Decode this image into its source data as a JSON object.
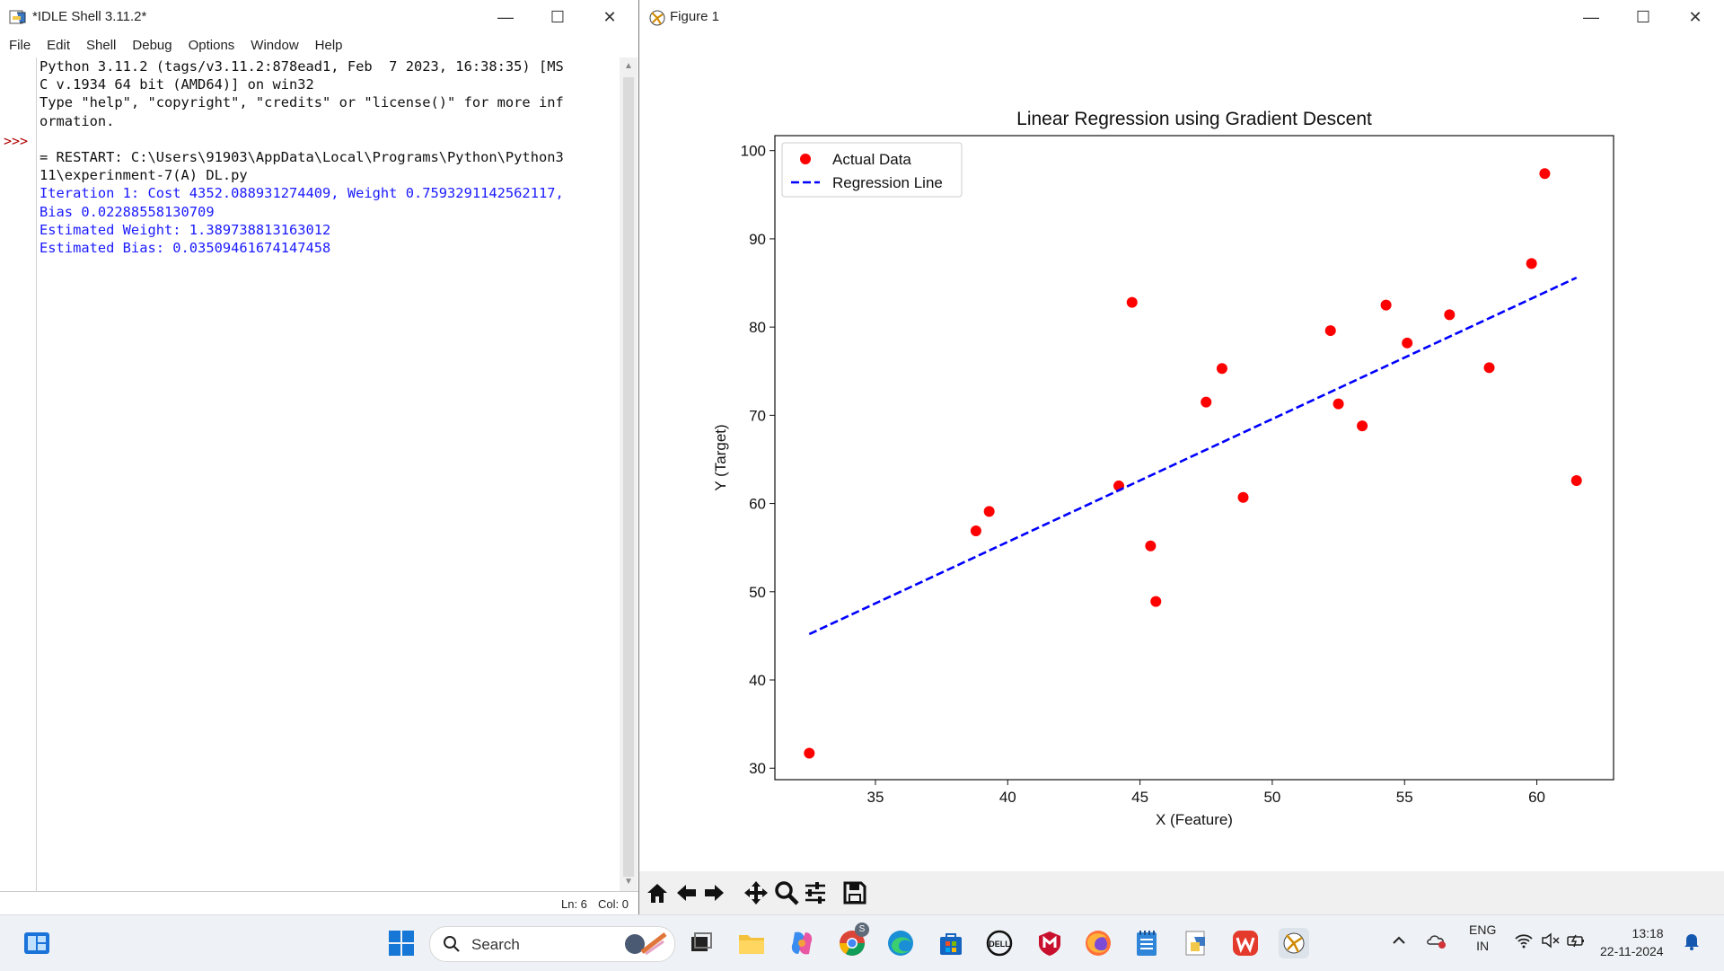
{
  "idle": {
    "title": "*IDLE Shell 3.11.2*",
    "menu": [
      "File",
      "Edit",
      "Shell",
      "Debug",
      "Options",
      "Window",
      "Help"
    ],
    "prompt": ">>>",
    "lines_black_1": [
      "Python 3.11.2 (tags/v3.11.2:878ead1, Feb  7 2023, 16:38:35) [MS",
      "C v.1934 64 bit (AMD64)] on win32",
      "Type \"help\", \"copyright\", \"credits\" or \"license()\" for more inf",
      "ormation.",
      "",
      "= RESTART: C:\\Users\\91903\\AppData\\Local\\Programs\\Python\\Python3",
      "11\\experinment-7(A) DL.py"
    ],
    "lines_blue": [
      "Iteration 1: Cost 4352.088931274409, Weight 0.7593291142562117,",
      "Bias 0.02288558130709",
      "Estimated Weight: 1.389738813163012",
      "Estimated Bias: 0.03509461674147458"
    ],
    "status_ln": "Ln: 6",
    "status_col": "Col: 0"
  },
  "figure": {
    "title": "Figure 1",
    "toolbar": [
      "home-icon",
      "back-icon",
      "forward-icon",
      "pan-icon",
      "zoom-icon",
      "configure-icon",
      "save-icon"
    ]
  },
  "chart_data": {
    "type": "scatter",
    "title": "Linear Regression using Gradient Descent",
    "xlabel": "X (Feature)",
    "ylabel": "Y (Target)",
    "xlim": [
      31.2,
      62.9
    ],
    "ylim": [
      28.7,
      101.7
    ],
    "xticks": [
      35,
      40,
      45,
      50,
      55,
      60
    ],
    "yticks": [
      30,
      40,
      50,
      60,
      70,
      80,
      90,
      100
    ],
    "legend_position": "top-left",
    "series": [
      {
        "name": "Actual Data",
        "kind": "scatter",
        "color": "#ff0000",
        "points": [
          [
            32.5,
            31.7
          ],
          [
            38.8,
            56.9
          ],
          [
            39.3,
            59.1
          ],
          [
            44.2,
            62.0
          ],
          [
            44.7,
            82.8
          ],
          [
            45.4,
            55.2
          ],
          [
            45.6,
            48.9
          ],
          [
            47.5,
            71.5
          ],
          [
            48.1,
            75.3
          ],
          [
            48.9,
            60.7
          ],
          [
            52.2,
            79.6
          ],
          [
            52.5,
            71.3
          ],
          [
            53.4,
            68.8
          ],
          [
            54.3,
            82.5
          ],
          [
            55.1,
            78.2
          ],
          [
            56.7,
            81.4
          ],
          [
            58.2,
            75.4
          ],
          [
            59.8,
            87.2
          ],
          [
            60.3,
            97.4
          ],
          [
            61.5,
            62.6
          ]
        ]
      },
      {
        "name": "Regression Line",
        "kind": "line",
        "style": "dashed",
        "color": "#0000ff",
        "points": [
          [
            32.5,
            45.2
          ],
          [
            61.5,
            85.6
          ]
        ]
      }
    ]
  },
  "taskbar": {
    "search_label": "Search",
    "lang_top": "ENG",
    "lang_bottom": "IN",
    "time": "13:18",
    "date": "22-11-2024",
    "chrome_badge": "S"
  }
}
